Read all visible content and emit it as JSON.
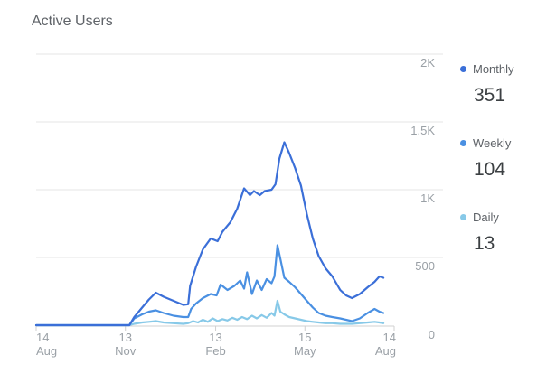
{
  "card": {
    "title": "Active Users"
  },
  "legend": [
    {
      "name": "Monthly",
      "value": "351",
      "color": "#3b6fd8"
    },
    {
      "name": "Weekly",
      "value": "104",
      "color": "#4a90e2"
    },
    {
      "name": "Daily",
      "value": "13",
      "color": "#87c9e8"
    }
  ],
  "chart_data": {
    "type": "line",
    "title": "Active Users",
    "xlabel": "",
    "ylabel": "",
    "ylim": [
      0,
      2000
    ],
    "y_ticks": [
      "0",
      "500",
      "1K",
      "1.5K",
      "2K"
    ],
    "y_tick_values": [
      0,
      500,
      1000,
      1500,
      2000
    ],
    "x_ticks": [
      {
        "day": "14",
        "month": "Aug",
        "pos": 0
      },
      {
        "day": "13",
        "month": "Nov",
        "pos": 91
      },
      {
        "day": "13",
        "month": "Feb",
        "pos": 183
      },
      {
        "day": "15",
        "month": "May",
        "pos": 274
      },
      {
        "day": "14",
        "month": "Aug",
        "pos": 365
      }
    ],
    "x_range": [
      0,
      365
    ],
    "grid": true,
    "legend_position": "right",
    "series": [
      {
        "name": "Monthly",
        "color": "#3b6fd8",
        "points": [
          [
            0,
            0
          ],
          [
            20,
            0
          ],
          [
            40,
            0
          ],
          [
            60,
            0
          ],
          [
            80,
            0
          ],
          [
            95,
            0
          ],
          [
            100,
            60
          ],
          [
            108,
            130
          ],
          [
            115,
            190
          ],
          [
            122,
            240
          ],
          [
            130,
            210
          ],
          [
            140,
            180
          ],
          [
            150,
            150
          ],
          [
            155,
            155
          ],
          [
            157,
            290
          ],
          [
            163,
            430
          ],
          [
            170,
            560
          ],
          [
            178,
            640
          ],
          [
            185,
            620
          ],
          [
            190,
            690
          ],
          [
            198,
            760
          ],
          [
            205,
            860
          ],
          [
            212,
            1010
          ],
          [
            218,
            960
          ],
          [
            222,
            990
          ],
          [
            228,
            960
          ],
          [
            233,
            990
          ],
          [
            240,
            1000
          ],
          [
            244,
            1040
          ],
          [
            248,
            1230
          ],
          [
            253,
            1350
          ],
          [
            258,
            1270
          ],
          [
            264,
            1160
          ],
          [
            270,
            1030
          ],
          [
            276,
            820
          ],
          [
            282,
            640
          ],
          [
            288,
            510
          ],
          [
            295,
            420
          ],
          [
            302,
            360
          ],
          [
            310,
            260
          ],
          [
            316,
            220
          ],
          [
            322,
            200
          ],
          [
            330,
            230
          ],
          [
            338,
            280
          ],
          [
            345,
            320
          ],
          [
            350,
            360
          ],
          [
            354,
            350
          ]
        ]
      },
      {
        "name": "Weekly",
        "color": "#4a90e2",
        "points": [
          [
            0,
            0
          ],
          [
            20,
            0
          ],
          [
            40,
            0
          ],
          [
            60,
            0
          ],
          [
            80,
            0
          ],
          [
            95,
            0
          ],
          [
            100,
            50
          ],
          [
            108,
            80
          ],
          [
            115,
            100
          ],
          [
            122,
            110
          ],
          [
            130,
            90
          ],
          [
            140,
            70
          ],
          [
            150,
            60
          ],
          [
            155,
            60
          ],
          [
            158,
            120
          ],
          [
            163,
            160
          ],
          [
            170,
            200
          ],
          [
            178,
            230
          ],
          [
            184,
            220
          ],
          [
            188,
            300
          ],
          [
            195,
            260
          ],
          [
            202,
            290
          ],
          [
            208,
            330
          ],
          [
            212,
            270
          ],
          [
            215,
            390
          ],
          [
            220,
            230
          ],
          [
            225,
            330
          ],
          [
            230,
            260
          ],
          [
            235,
            340
          ],
          [
            240,
            310
          ],
          [
            243,
            360
          ],
          [
            246,
            590
          ],
          [
            249,
            490
          ],
          [
            253,
            350
          ],
          [
            258,
            320
          ],
          [
            264,
            280
          ],
          [
            270,
            230
          ],
          [
            276,
            180
          ],
          [
            282,
            130
          ],
          [
            288,
            90
          ],
          [
            295,
            70
          ],
          [
            302,
            60
          ],
          [
            310,
            50
          ],
          [
            316,
            40
          ],
          [
            322,
            30
          ],
          [
            330,
            50
          ],
          [
            338,
            90
          ],
          [
            345,
            120
          ],
          [
            350,
            100
          ],
          [
            354,
            90
          ]
        ]
      },
      {
        "name": "Daily",
        "color": "#87c9e8",
        "points": [
          [
            0,
            0
          ],
          [
            20,
            0
          ],
          [
            40,
            0
          ],
          [
            60,
            0
          ],
          [
            80,
            0
          ],
          [
            95,
            0
          ],
          [
            100,
            10
          ],
          [
            108,
            20
          ],
          [
            115,
            25
          ],
          [
            122,
            30
          ],
          [
            130,
            20
          ],
          [
            140,
            15
          ],
          [
            150,
            10
          ],
          [
            155,
            15
          ],
          [
            160,
            30
          ],
          [
            165,
            20
          ],
          [
            170,
            40
          ],
          [
            175,
            25
          ],
          [
            180,
            50
          ],
          [
            185,
            30
          ],
          [
            190,
            45
          ],
          [
            195,
            35
          ],
          [
            200,
            55
          ],
          [
            205,
            40
          ],
          [
            210,
            60
          ],
          [
            215,
            45
          ],
          [
            220,
            70
          ],
          [
            225,
            50
          ],
          [
            230,
            75
          ],
          [
            235,
            55
          ],
          [
            240,
            90
          ],
          [
            243,
            70
          ],
          [
            246,
            180
          ],
          [
            249,
            100
          ],
          [
            253,
            80
          ],
          [
            258,
            60
          ],
          [
            264,
            50
          ],
          [
            270,
            40
          ],
          [
            276,
            30
          ],
          [
            282,
            25
          ],
          [
            288,
            20
          ],
          [
            295,
            15
          ],
          [
            302,
            15
          ],
          [
            310,
            10
          ],
          [
            316,
            10
          ],
          [
            322,
            10
          ],
          [
            330,
            15
          ],
          [
            338,
            20
          ],
          [
            345,
            25
          ],
          [
            350,
            20
          ],
          [
            354,
            15
          ]
        ]
      }
    ]
  }
}
